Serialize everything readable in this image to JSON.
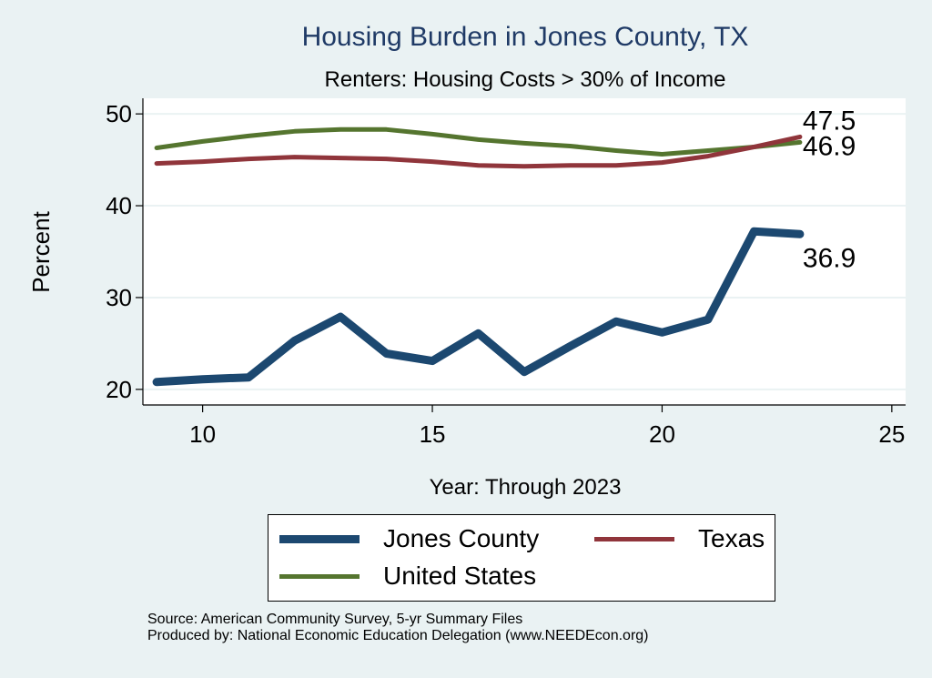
{
  "chart_data": {
    "type": "line",
    "title": "Housing Burden in Jones County, TX",
    "subtitle": "Renters: Housing Costs > 30% of Income",
    "xlabel": "Year: Through 2023",
    "ylabel": "Percent",
    "xlim": [
      8.7,
      25.3
    ],
    "ylim": [
      18.3,
      51.7
    ],
    "xticks": [
      10,
      15,
      20,
      25
    ],
    "yticks": [
      20,
      30,
      40,
      50
    ],
    "grid": true,
    "legend_position": "bottom",
    "x": [
      9,
      10,
      11,
      12,
      13,
      14,
      15,
      16,
      17,
      18,
      19,
      20,
      21,
      22,
      23
    ],
    "series": [
      {
        "name": "Jones County",
        "color": "#1c4870",
        "values": [
          20.8,
          21.1,
          21.3,
          25.3,
          27.9,
          23.9,
          23.1,
          26.1,
          21.9,
          24.7,
          27.4,
          26.2,
          27.6,
          37.2,
          36.9
        ],
        "end_label": "36.9"
      },
      {
        "name": "Texas",
        "color": "#90353b",
        "values": [
          44.6,
          44.8,
          45.1,
          45.3,
          45.2,
          45.1,
          44.8,
          44.4,
          44.3,
          44.4,
          44.4,
          44.7,
          45.4,
          46.4,
          47.5
        ],
        "end_label": "47.5"
      },
      {
        "name": "United States",
        "color": "#55752f",
        "values": [
          46.3,
          47.0,
          47.6,
          48.1,
          48.3,
          48.3,
          47.8,
          47.2,
          46.8,
          46.5,
          46.0,
          45.6,
          46.0,
          46.4,
          46.9
        ],
        "end_label": "46.9"
      }
    ]
  },
  "notes": {
    "source": "Source: American Community Survey, 5-yr Summary Files",
    "produced": "Produced by: National Economic Education Delegation (www.NEEDEcon.org)"
  },
  "colors": {
    "background": "#eaf2f3",
    "plot_background": "#ffffff",
    "title": "#1f3a66"
  }
}
